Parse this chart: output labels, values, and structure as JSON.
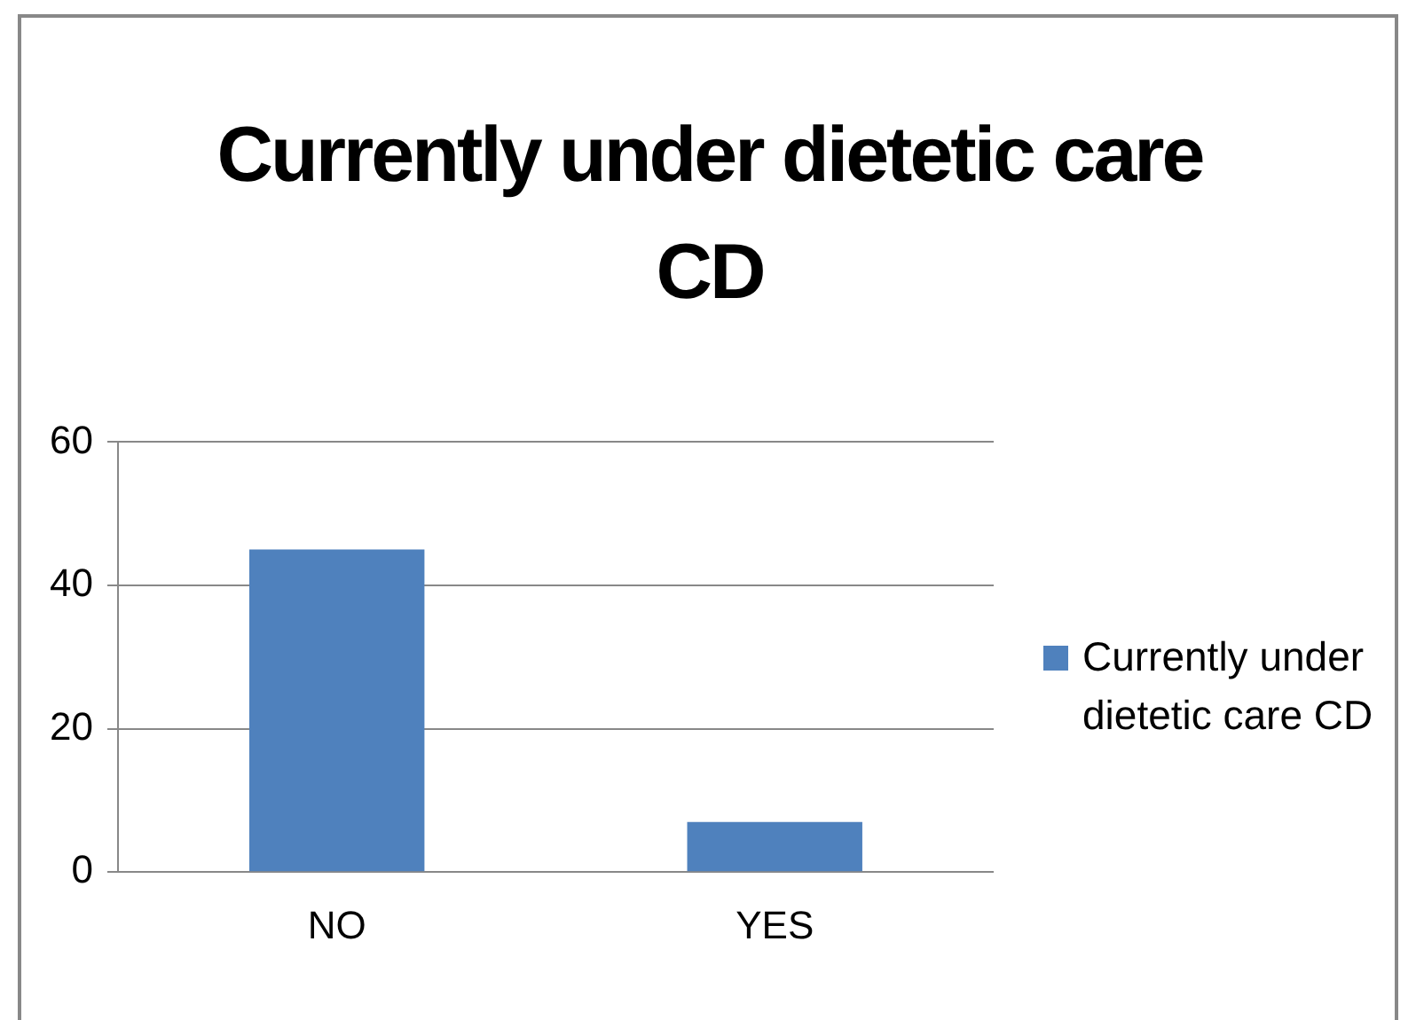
{
  "chart_data": {
    "type": "bar",
    "title": "Currently under dietetic care CD",
    "categories": [
      "NO",
      "YES"
    ],
    "series": [
      {
        "name": "Currently under dietetic care CD",
        "color": "#4f81bd",
        "values": [
          45,
          7
        ]
      }
    ],
    "ylim": [
      0,
      60
    ],
    "yticks": [
      0,
      20,
      40,
      60
    ],
    "grid": "y",
    "legend": "right"
  }
}
